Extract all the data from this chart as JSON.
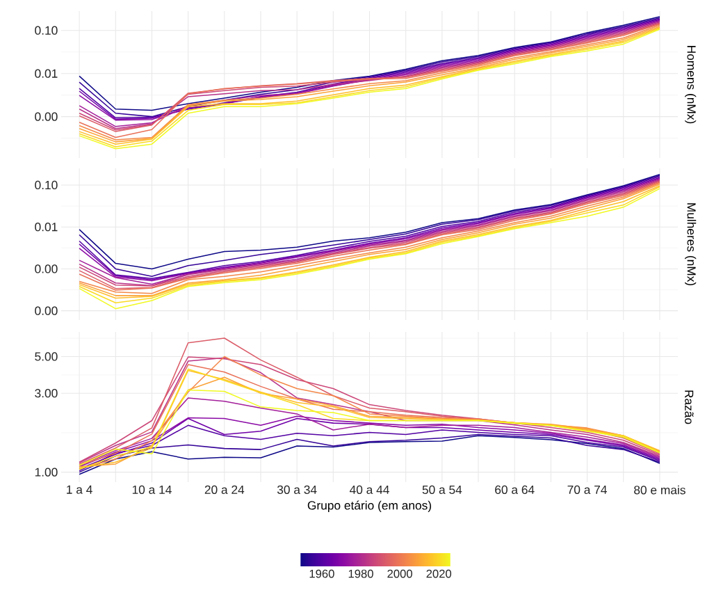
{
  "chart_data": [
    {
      "type": "line",
      "ylabel": "Homens (nMx)",
      "log": true,
      "grid": true,
      "tick_labels": "y",
      "categories": [
        null,
        null,
        null,
        null,
        null,
        null,
        null,
        null,
        null,
        null,
        null,
        null,
        null,
        null,
        null,
        null,
        null
      ],
      "ylim": [
        0.00011,
        0.28
      ],
      "yticks": [
        {
          "value": 0.1,
          "label": "0.10"
        },
        {
          "value": 0.01,
          "label": "0.01"
        },
        {
          "value": 0.001,
          "label": "0.00"
        }
      ],
      "series": [
        {
          "color": "#0d0887",
          "values": [
            0.0087,
            0.0015,
            0.0014,
            0.002,
            0.0027,
            0.0037,
            0.0048,
            0.0069,
            0.0087,
            0.0126,
            0.0198,
            0.0262,
            0.0401,
            0.0543,
            0.0885,
            0.132,
            0.208
          ]
        },
        {
          "color": "#350498",
          "values": [
            0.0063,
            0.0012,
            0.001,
            0.0017,
            0.0024,
            0.0033,
            0.0042,
            0.0063,
            0.0084,
            0.0119,
            0.0186,
            0.0247,
            0.0382,
            0.0524,
            0.0833,
            0.124,
            0.195
          ]
        },
        {
          "color": "#5302a3",
          "values": [
            0.0045,
            0.00094,
            0.00097,
            0.0015,
            0.0021,
            0.0029,
            0.0037,
            0.0057,
            0.008,
            0.0112,
            0.0171,
            0.0232,
            0.0364,
            0.05,
            0.0784,
            0.117,
            0.184
          ]
        },
        {
          "color": "#6f00a8",
          "values": [
            0.0039,
            0.00087,
            0.00092,
            0.0015,
            0.002,
            0.0028,
            0.0035,
            0.0054,
            0.0077,
            0.0105,
            0.0161,
            0.0219,
            0.0347,
            0.0476,
            0.0738,
            0.11,
            0.178
          ]
        },
        {
          "color": "#8b0aa5",
          "values": [
            0.0031,
            0.00083,
            0.00086,
            0.0016,
            0.002,
            0.0029,
            0.0034,
            0.0051,
            0.0073,
            0.0099,
            0.0151,
            0.0205,
            0.033,
            0.0453,
            0.0694,
            0.104,
            0.169
          ]
        },
        {
          "color": "#a31e9a",
          "values": [
            0.0018,
            0.00059,
            0.00072,
            0.0018,
            0.0024,
            0.0031,
            0.0035,
            0.0052,
            0.0071,
            0.0093,
            0.0142,
            0.0193,
            0.0314,
            0.0431,
            0.0653,
            0.0976,
            0.163
          ]
        },
        {
          "color": "#b83289",
          "values": [
            0.0015,
            0.00053,
            0.00068,
            0.0029,
            0.0034,
            0.004,
            0.0042,
            0.0056,
            0.0069,
            0.0087,
            0.0134,
            0.0184,
            0.0299,
            0.041,
            0.0614,
            0.0918,
            0.156
          ]
        },
        {
          "color": "#cc4778",
          "values": [
            0.0012,
            0.00049,
            0.00065,
            0.0033,
            0.004,
            0.0048,
            0.0051,
            0.0063,
            0.0073,
            0.0084,
            0.0126,
            0.0175,
            0.0285,
            0.039,
            0.0578,
            0.0864,
            0.149
          ]
        },
        {
          "color": "#db5c68",
          "values": [
            0.00104,
            0.00045,
            0.00064,
            0.0035,
            0.0044,
            0.0052,
            0.0058,
            0.0069,
            0.0077,
            0.0082,
            0.0119,
            0.0167,
            0.0271,
            0.0371,
            0.0543,
            0.0813,
            0.144
          ]
        },
        {
          "color": "#e97158",
          "values": [
            0.00074,
            0.00033,
            0.0005,
            0.0034,
            0.0045,
            0.0051,
            0.0057,
            0.0066,
            0.0075,
            0.0077,
            0.0112,
            0.0159,
            0.0259,
            0.0353,
            0.0512,
            0.0765,
            0.139
          ]
        },
        {
          "color": "#f48849",
          "values": [
            0.00062,
            0.00029,
            0.00033,
            0.0019,
            0.0024,
            0.0027,
            0.0033,
            0.0044,
            0.0058,
            0.0068,
            0.0103,
            0.0148,
            0.0232,
            0.0322,
            0.0465,
            0.0669,
            0.132
          ]
        },
        {
          "color": "#fba238",
          "values": [
            0.00053,
            0.00026,
            0.00031,
            0.0018,
            0.0023,
            0.0025,
            0.0029,
            0.0039,
            0.0052,
            0.0063,
            0.0093,
            0.0137,
            0.0213,
            0.03,
            0.0427,
            0.0614,
            0.123
          ]
        },
        {
          "color": "#febd2a",
          "values": [
            0.00045,
            0.00023,
            0.0003,
            0.0017,
            0.002,
            0.002,
            0.0023,
            0.0032,
            0.0045,
            0.0054,
            0.0084,
            0.0131,
            0.0193,
            0.0278,
            0.039,
            0.0564,
            0.117
          ]
        },
        {
          "color": "#fada24",
          "values": [
            0.0004,
            0.0002,
            0.00027,
            0.0014,
            0.0019,
            0.0019,
            0.0021,
            0.0029,
            0.004,
            0.0049,
            0.008,
            0.0124,
            0.018,
            0.0262,
            0.0364,
            0.0524,
            0.112
          ]
        },
        {
          "color": "#f0f921",
          "values": [
            0.00036,
            0.00018,
            0.00023,
            0.0012,
            0.0017,
            0.0017,
            0.002,
            0.0027,
            0.0037,
            0.0045,
            0.0075,
            0.0119,
            0.0167,
            0.0247,
            0.0334,
            0.0481,
            0.106
          ]
        }
      ]
    },
    {
      "type": "line",
      "ylabel": "Mulheres (nMx)",
      "log": true,
      "grid": true,
      "tick_labels": "y",
      "categories": [
        null,
        null,
        null,
        null,
        null,
        null,
        null,
        null,
        null,
        null,
        null,
        null,
        null,
        null,
        null,
        null,
        null
      ],
      "ylim": [
        6e-05,
        0.25
      ],
      "yticks": [
        {
          "value": 0.1,
          "label": "0.10"
        },
        {
          "value": 0.01,
          "label": "0.01"
        },
        {
          "value": 0.001,
          "label": "0.00"
        },
        {
          "value": 0.0001,
          "label": "0.00"
        }
      ],
      "series": [
        {
          "color": "#0d0887",
          "values": [
            0.0087,
            0.00135,
            0.001,
            0.0017,
            0.0026,
            0.0028,
            0.0033,
            0.0046,
            0.0055,
            0.0075,
            0.0127,
            0.0158,
            0.0254,
            0.0343,
            0.0586,
            0.0963,
            0.179
          ]
        },
        {
          "color": "#350498",
          "values": [
            0.0065,
            0.001,
            0.00066,
            0.0012,
            0.0016,
            0.0022,
            0.0028,
            0.0037,
            0.005,
            0.0068,
            0.0116,
            0.0149,
            0.0242,
            0.0327,
            0.0565,
            0.0928,
            0.169
          ]
        },
        {
          "color": "#5302a3",
          "values": [
            0.0046,
            0.00072,
            0.00059,
            0.00082,
            0.0012,
            0.0015,
            0.0021,
            0.0031,
            0.0045,
            0.006,
            0.0103,
            0.0136,
            0.0225,
            0.0303,
            0.0537,
            0.0883,
            0.159
          ]
        },
        {
          "color": "#6f00a8",
          "values": [
            0.0039,
            0.00069,
            0.00055,
            0.0008,
            0.0011,
            0.0014,
            0.002,
            0.0028,
            0.0041,
            0.0055,
            0.0094,
            0.0127,
            0.0209,
            0.0288,
            0.0511,
            0.083,
            0.149
          ]
        },
        {
          "color": "#8b0aa5",
          "values": [
            0.0031,
            0.00064,
            0.00052,
            0.00078,
            0.00105,
            0.00138,
            0.0019,
            0.0027,
            0.0039,
            0.0052,
            0.0087,
            0.0121,
            0.0198,
            0.0274,
            0.0486,
            0.078,
            0.143
          ]
        },
        {
          "color": "#a31e9a",
          "values": [
            0.0016,
            0.00062,
            0.00043,
            0.00075,
            0.001,
            0.0013,
            0.0017,
            0.0026,
            0.0037,
            0.0048,
            0.0083,
            0.0112,
            0.0184,
            0.0254,
            0.0457,
            0.0733,
            0.138
          ]
        },
        {
          "color": "#b83289",
          "values": [
            0.0013,
            0.00046,
            0.0004,
            0.00073,
            0.00097,
            0.00124,
            0.0016,
            0.0024,
            0.0035,
            0.0046,
            0.0077,
            0.0107,
            0.0175,
            0.0242,
            0.043,
            0.0689,
            0.132
          ]
        },
        {
          "color": "#cc4778",
          "values": [
            0.0011,
            0.00041,
            0.00039,
            0.00066,
            0.00091,
            0.00116,
            0.0015,
            0.0023,
            0.0032,
            0.0043,
            0.0073,
            0.0099,
            0.0162,
            0.0225,
            0.0399,
            0.0639,
            0.127
          ]
        },
        {
          "color": "#db5c68",
          "values": [
            0.00091,
            0.00034,
            0.00036,
            0.00062,
            0.00085,
            0.0011,
            0.00145,
            0.0022,
            0.0031,
            0.004,
            0.0068,
            0.0094,
            0.0155,
            0.0214,
            0.0379,
            0.06,
            0.122
          ]
        },
        {
          "color": "#e97158",
          "values": [
            0.00075,
            0.00031,
            0.00035,
            0.00059,
            0.0008,
            0.00103,
            0.00135,
            0.002,
            0.0028,
            0.0038,
            0.0065,
            0.0087,
            0.0144,
            0.0204,
            0.0356,
            0.0564,
            0.116
          ]
        },
        {
          "color": "#f48849",
          "values": [
            0.0005,
            0.00028,
            0.00026,
            0.00055,
            0.00066,
            0.00085,
            0.0012,
            0.0017,
            0.0024,
            0.0033,
            0.0055,
            0.008,
            0.0127,
            0.018,
            0.0314,
            0.0517,
            0.112
          ]
        },
        {
          "color": "#fba238",
          "values": [
            0.00046,
            0.00023,
            0.00023,
            0.00046,
            0.00055,
            0.00071,
            0.00103,
            0.0015,
            0.0022,
            0.0029,
            0.005,
            0.0073,
            0.0116,
            0.0162,
            0.0277,
            0.0474,
            0.105
          ]
        },
        {
          "color": "#febd2a",
          "values": [
            0.00042,
            0.0002,
            0.00022,
            0.00043,
            0.00052,
            0.00062,
            0.00085,
            0.00124,
            0.0019,
            0.0026,
            0.0046,
            0.0066,
            0.0103,
            0.0144,
            0.0245,
            0.0403,
            0.0963
          ]
        },
        {
          "color": "#fada24",
          "values": [
            0.00038,
            0.000155,
            0.0002,
            0.0004,
            0.0005,
            0.00059,
            0.0008,
            0.00116,
            0.0018,
            0.0024,
            0.0043,
            0.0062,
            0.0096,
            0.0137,
            0.0216,
            0.0335,
            0.0906
          ]
        },
        {
          "color": "#f0f921",
          "values": [
            0.00034,
            0.000112,
            0.000175,
            0.00038,
            0.00047,
            0.00055,
            0.00075,
            0.0011,
            0.0017,
            0.0023,
            0.004,
            0.0059,
            0.0091,
            0.0127,
            0.018,
            0.0296,
            0.0822
          ]
        }
      ]
    },
    {
      "type": "line",
      "ylabel": "Razão",
      "xlabel": "Grupo etário (em anos)",
      "log": true,
      "grid": true,
      "categories": [
        "1 a 4",
        null,
        "10 a 14",
        null,
        "20 a 24",
        null,
        "30 a 34",
        null,
        "40 a 44",
        null,
        "50 a 54",
        null,
        "60 a 64",
        null,
        "70 a 74",
        null,
        "80 e mais"
      ],
      "ylim": [
        0.87,
        7.05
      ],
      "yticks": [
        {
          "value": 1,
          "label": "1.00"
        },
        {
          "value": 3,
          "label": "3.00"
        },
        {
          "value": 5,
          "label": "5.00"
        }
      ],
      "clim": [
        1949,
        2026
      ],
      "cticks": [
        1960,
        1980,
        2000,
        2020
      ],
      "series": [
        {
          "color": "#0d0887",
          "values": [
            0.97,
            1.2,
            1.33,
            1.2,
            1.23,
            1.22,
            1.44,
            1.42,
            1.51,
            1.53,
            1.54,
            1.66,
            1.62,
            1.57,
            1.49,
            1.39,
            1.13
          ]
        },
        {
          "color": "#350498",
          "values": [
            1.0,
            1.25,
            1.4,
            1.46,
            1.39,
            1.37,
            1.58,
            1.44,
            1.53,
            1.56,
            1.61,
            1.69,
            1.65,
            1.61,
            1.45,
            1.37,
            1.15
          ]
        },
        {
          "color": "#5302a3",
          "values": [
            1.02,
            1.3,
            1.45,
            1.92,
            1.66,
            1.58,
            1.72,
            1.66,
            1.74,
            1.69,
            1.8,
            1.74,
            1.69,
            1.66,
            1.51,
            1.42,
            1.17
          ]
        },
        {
          "color": "#6f00a8",
          "values": [
            1.05,
            1.28,
            1.5,
            2.11,
            1.69,
            1.77,
            2.11,
            1.98,
            1.95,
            1.86,
            1.86,
            1.8,
            1.74,
            1.69,
            1.56,
            1.44,
            1.19
          ]
        },
        {
          "color": "#8b0aa5",
          "values": [
            1.08,
            1.32,
            1.55,
            2.13,
            2.11,
            1.92,
            2.18,
            2.05,
            1.98,
            1.92,
            1.95,
            1.86,
            1.8,
            1.72,
            1.58,
            1.46,
            1.21
          ]
        },
        {
          "color": "#a31e9a",
          "values": [
            1.1,
            1.35,
            1.6,
            2.81,
            2.68,
            2.44,
            2.25,
            1.8,
            1.95,
            1.86,
            1.92,
            1.92,
            1.86,
            1.74,
            1.63,
            1.49,
            1.23
          ]
        },
        {
          "color": "#b83289",
          "values": [
            1.14,
            1.45,
            1.75,
            4.69,
            4.92,
            4.0,
            2.81,
            2.56,
            2.32,
            2.05,
            2.05,
            2.05,
            1.93,
            1.8,
            1.69,
            1.51,
            1.25
          ]
        },
        {
          "color": "#cc4778",
          "values": [
            1.15,
            1.5,
            2.05,
            4.97,
            4.84,
            4.47,
            3.63,
            3.2,
            2.56,
            2.36,
            2.21,
            2.1,
            1.98,
            1.86,
            1.74,
            1.56,
            1.27
          ]
        },
        {
          "color": "#db5c68",
          "values": [
            1.12,
            1.4,
            1.85,
            6.05,
            6.46,
            4.77,
            3.75,
            2.9,
            2.44,
            2.32,
            2.18,
            2.08,
            1.97,
            1.91,
            1.8,
            1.61,
            1.29
          ]
        },
        {
          "color": "#e97158",
          "values": [
            1.1,
            1.3,
            1.7,
            4.47,
            4.03,
            3.3,
            2.77,
            2.4,
            2.32,
            2.21,
            2.14,
            2.1,
            1.98,
            1.92,
            1.83,
            1.63,
            1.31
          ]
        },
        {
          "color": "#f48849",
          "values": [
            1.05,
            1.2,
            1.55,
            3.05,
            5.0,
            3.87,
            3.2,
            2.9,
            2.25,
            2.18,
            2.11,
            2.08,
            1.99,
            1.93,
            1.85,
            1.66,
            1.33
          ]
        },
        {
          "color": "#fba238",
          "values": [
            1.08,
            1.12,
            1.45,
            3.14,
            3.75,
            3.0,
            2.77,
            2.52,
            2.18,
            2.14,
            2.1,
            2.06,
            1.99,
            1.95,
            1.83,
            1.66,
            1.34
          ]
        },
        {
          "color": "#febd2a",
          "values": [
            1.06,
            1.15,
            1.4,
            4.12,
            3.63,
            3.05,
            2.64,
            2.48,
            2.14,
            2.11,
            2.08,
            2.06,
            1.99,
            1.93,
            1.8,
            1.66,
            1.35
          ]
        },
        {
          "color": "#fada24",
          "values": [
            1.04,
            1.25,
            1.42,
            4.2,
            3.58,
            3.02,
            2.56,
            2.11,
            2.05,
            2.05,
            2.05,
            2.05,
            1.98,
            1.92,
            1.77,
            1.66,
            1.32
          ]
        },
        {
          "color": "#f0f921",
          "values": [
            1.1,
            1.38,
            1.29,
            3.14,
            3.08,
            2.48,
            2.36,
            2.29,
            2.05,
            2.05,
            2.05,
            2.05,
            1.98,
            1.91,
            1.77,
            1.63,
            1.31
          ]
        }
      ]
    }
  ]
}
